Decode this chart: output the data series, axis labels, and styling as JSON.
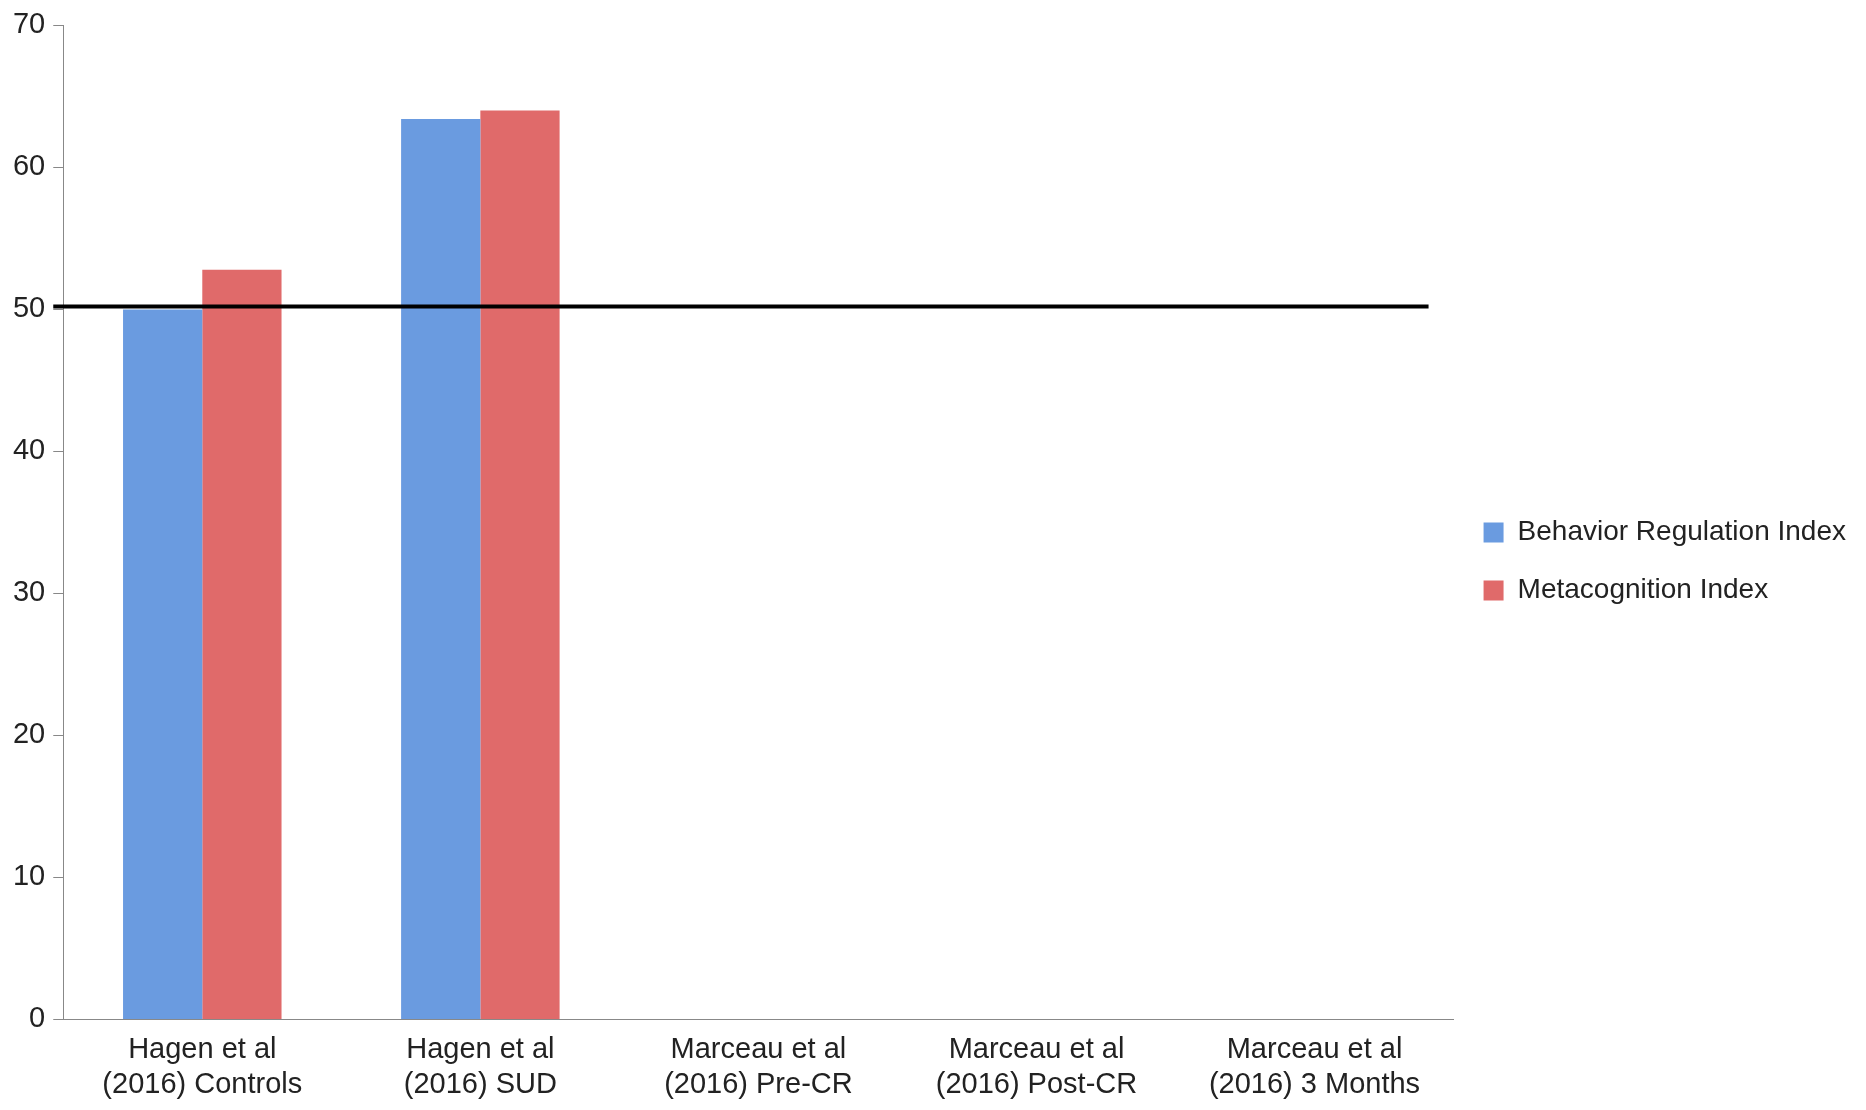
{
  "chart_data": {
    "type": "bar",
    "categories": [
      "Hagen et al (2016) Controls",
      "Hagen et al (2016) SUD",
      "Marceau et al (2016) Pre-CR",
      "Marceau et al (2016) Post-CR",
      "Marceau et al (2016) 3 Months"
    ],
    "series": [
      {
        "name": "Behavior Regulation Index",
        "color": "#6a9be0",
        "values": [
          50,
          63.4,
          0,
          0,
          0
        ]
      },
      {
        "name": "Metacognition Index",
        "color": "#e06a6a",
        "values": [
          52.8,
          64.0,
          0,
          0,
          0
        ]
      }
    ],
    "ylim": [
      0,
      70
    ],
    "yticks": [
      0,
      10,
      20,
      30,
      40,
      50,
      60,
      70
    ],
    "grid": false,
    "legend": "right",
    "ref_lines": [
      {
        "axis": "y",
        "value": 50.2,
        "color": "#000000"
      }
    ]
  }
}
